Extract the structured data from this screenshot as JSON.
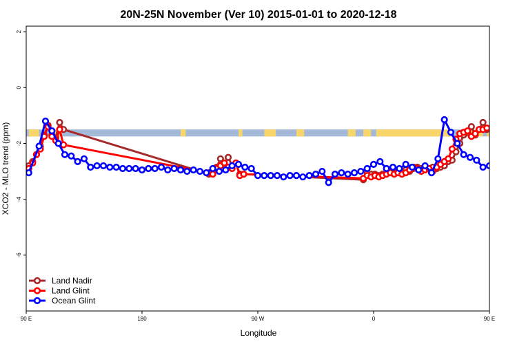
{
  "chart_data": {
    "type": "line",
    "title": "20N-25N November (Ver 10)   2015-01-01 to 2020-12-18",
    "xlabel": "Longitude",
    "ylabel": "XCO2 - MLO trend (ppm)",
    "xlim": [
      90,
      450
    ],
    "ylim": [
      -8,
      2.2
    ],
    "x_ticks": [
      {
        "value": 90,
        "label": "90 E"
      },
      {
        "value": 180,
        "label": "180"
      },
      {
        "value": 270,
        "label": "90 W"
      },
      {
        "value": 360,
        "label": "0"
      },
      {
        "value": 450,
        "label": "90 E"
      },
      {
        "value": 540,
        "label": "180"
      }
    ],
    "y_ticks": [
      {
        "value": 2,
        "label": "2"
      },
      {
        "value": 0,
        "label": "0"
      },
      {
        "value": -2,
        "label": "-2"
      },
      {
        "value": -4,
        "label": "-4"
      },
      {
        "value": -6,
        "label": "-6"
      }
    ],
    "map_strip": {
      "y_top": -1.5,
      "y_bottom": -1.75,
      "ocean_color": "#a4b8d8",
      "land_color": "#f7d56a"
    },
    "legend": {
      "placement": "bottom-left"
    },
    "series": [
      {
        "name": "Land Nadir",
        "color": "#a52a2a",
        "x": [
          92,
          95,
          98,
          101,
          104,
          107,
          110,
          113,
          116,
          119,
          232,
          235,
          238,
          241,
          244,
          247,
          250,
          253,
          256,
          259,
          352,
          355,
          358,
          361,
          364,
          367,
          370,
          373,
          376,
          379,
          382,
          385,
          388,
          391,
          394,
          397,
          400,
          403,
          406,
          409,
          412,
          415,
          418,
          421,
          424,
          427,
          430,
          433,
          436,
          439,
          442,
          445,
          448
        ],
        "y": [
          -2.8,
          -2.65,
          -2.4,
          -2.1,
          -1.7,
          -1.35,
          -1.7,
          -1.8,
          -1.25,
          -1.5,
          -3.1,
          -3.05,
          -2.85,
          -2.55,
          -2.8,
          -2.5,
          -2.8,
          -2.7,
          -3.1,
          -3.1,
          -3.3,
          -3.05,
          -3.1,
          -3.1,
          -3.15,
          -3.1,
          -3.05,
          -3.0,
          -3.05,
          -2.95,
          -3.0,
          -2.95,
          -3.0,
          -2.9,
          -2.85,
          -2.9,
          -2.85,
          -2.9,
          -2.85,
          -2.9,
          -2.85,
          -2.8,
          -2.65,
          -2.6,
          -2.3,
          -2.0,
          -1.7,
          -1.6,
          -1.4,
          -1.7,
          -1.5,
          -1.25,
          -1.5
        ]
      },
      {
        "name": "Land Glint",
        "color": "#ff0000",
        "x": [
          92,
          95,
          98,
          101,
          104,
          107,
          110,
          113,
          116,
          119,
          232,
          235,
          238,
          241,
          244,
          247,
          250,
          253,
          256,
          259,
          352,
          355,
          358,
          361,
          364,
          367,
          370,
          373,
          376,
          379,
          382,
          385,
          388,
          391,
          394,
          397,
          400,
          403,
          406,
          409,
          412,
          415,
          418,
          421,
          424,
          427,
          430,
          433,
          436,
          439,
          442,
          445,
          448
        ],
        "y": [
          -2.9,
          -2.7,
          -2.4,
          -2.2,
          -1.75,
          -1.4,
          -1.75,
          -1.9,
          -1.5,
          -2.05,
          -3.05,
          -3.1,
          -2.9,
          -2.8,
          -2.7,
          -2.85,
          -2.9,
          -2.7,
          -3.15,
          -3.1,
          -3.25,
          -3.15,
          -3.2,
          -3.15,
          -3.2,
          -3.15,
          -3.1,
          -3.05,
          -3.1,
          -3.05,
          -3.1,
          -3.05,
          -2.95,
          -2.85,
          -2.9,
          -3.0,
          -2.95,
          -2.9,
          -3.0,
          -2.85,
          -2.75,
          -2.65,
          -2.55,
          -2.2,
          -1.85,
          -1.65,
          -1.6,
          -1.55,
          -1.75,
          -1.65,
          -1.5,
          -1.5,
          -1.45
        ]
      },
      {
        "name": "Ocean Glint",
        "color": "#0000ff",
        "x": [
          92,
          100,
          105,
          110,
          115,
          120,
          125,
          130,
          135,
          140,
          145,
          150,
          155,
          160,
          165,
          170,
          175,
          180,
          185,
          190,
          195,
          200,
          205,
          210,
          215,
          220,
          225,
          230,
          235,
          240,
          245,
          250,
          255,
          260,
          265,
          270,
          275,
          280,
          285,
          290,
          295,
          300,
          305,
          310,
          315,
          320,
          325,
          330,
          335,
          340,
          345,
          350,
          355,
          360,
          365,
          370,
          375,
          380,
          385,
          390,
          395,
          400,
          405,
          410,
          415,
          420,
          425,
          430,
          435,
          440,
          445,
          450,
          455
        ],
        "y": [
          -3.05,
          -2.1,
          -1.2,
          -1.55,
          -2.0,
          -2.4,
          -2.45,
          -2.65,
          -2.55,
          -2.85,
          -2.8,
          -2.8,
          -2.85,
          -2.85,
          -2.9,
          -2.9,
          -2.9,
          -2.95,
          -2.9,
          -2.9,
          -2.85,
          -2.95,
          -2.9,
          -2.95,
          -3.0,
          -2.95,
          -3.0,
          -3.05,
          -2.9,
          -3.0,
          -2.95,
          -2.8,
          -2.75,
          -2.85,
          -2.9,
          -3.15,
          -3.15,
          -3.15,
          -3.15,
          -3.2,
          -3.15,
          -3.15,
          -3.2,
          -3.15,
          -3.1,
          -3.0,
          -3.4,
          -3.1,
          -3.05,
          -3.1,
          -3.05,
          -3.0,
          -2.9,
          -2.75,
          -2.65,
          -2.9,
          -2.85,
          -2.9,
          -2.75,
          -2.85,
          -2.95,
          -2.8,
          -3.05,
          -2.55,
          -1.15,
          -1.6,
          -2.0,
          -2.4,
          -2.5,
          -2.6,
          -2.85,
          -2.8,
          -2.9
        ]
      }
    ]
  }
}
